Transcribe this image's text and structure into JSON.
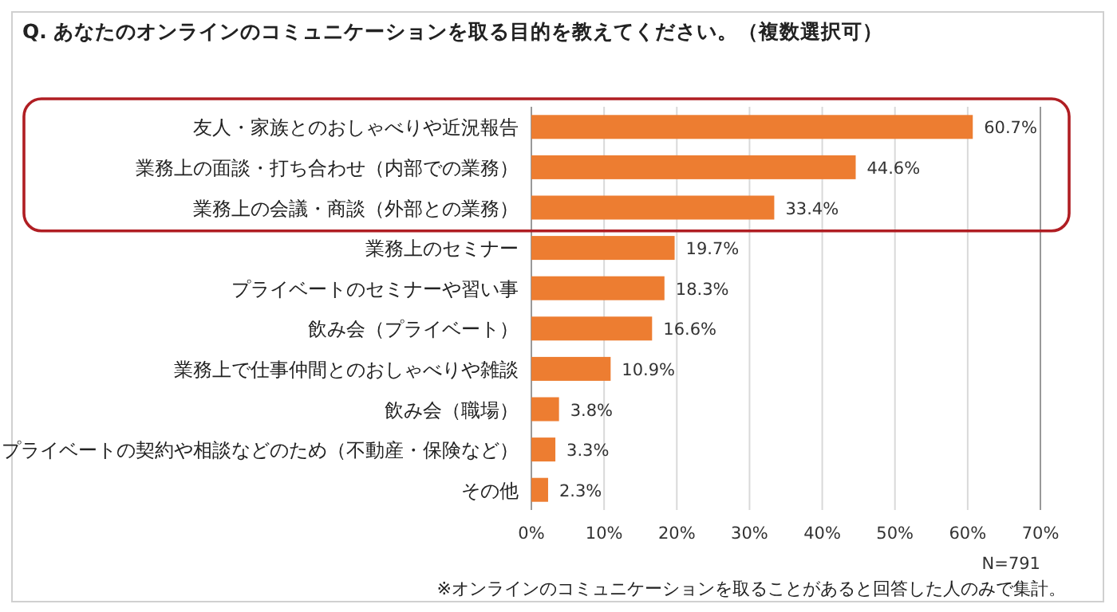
{
  "chart_data": {
    "type": "bar",
    "orientation": "horizontal",
    "title": "Q. あなたのオンラインのコミュニケーションを取る目的を教えてください。（複数選択可）",
    "categories": [
      "友人・家族とのおしゃべりや近況報告",
      "業務上の面談・打ち合わせ（内部での業務）",
      "業務上の会議・商談（外部との業務）",
      "業務上のセミナー",
      "プライベートのセミナーや習い事",
      "飲み会（プライベート）",
      "業務上で仕事仲間とのおしゃべりや雑談",
      "飲み会（職場）",
      "プライベートの契約や相談などのため（不動産・保険など）",
      "その他"
    ],
    "values": [
      60.7,
      44.6,
      33.4,
      19.7,
      18.3,
      16.6,
      10.9,
      3.8,
      3.3,
      2.3
    ],
    "value_labels": [
      "60.7%",
      "44.6%",
      "33.4%",
      "19.7%",
      "18.3%",
      "16.6%",
      "10.9%",
      "3.8%",
      "3.3%",
      "2.3%"
    ],
    "color": "#ed7d31",
    "xlim": [
      0,
      70
    ],
    "xticks": [
      {
        "value": 0,
        "label": "0%"
      },
      {
        "value": 10,
        "label": "10%"
      },
      {
        "value": 20,
        "label": "20%"
      },
      {
        "value": 30,
        "label": "30%"
      },
      {
        "value": 40,
        "label": "40%"
      },
      {
        "value": 50,
        "label": "50%"
      },
      {
        "value": 60,
        "label": "60%"
      },
      {
        "value": 70,
        "label": "70%"
      }
    ],
    "grid": "x",
    "annotations": [
      "N=791",
      "※オンラインのコミュニケーションを取ることがあると回答した人のみで集計。"
    ]
  }
}
